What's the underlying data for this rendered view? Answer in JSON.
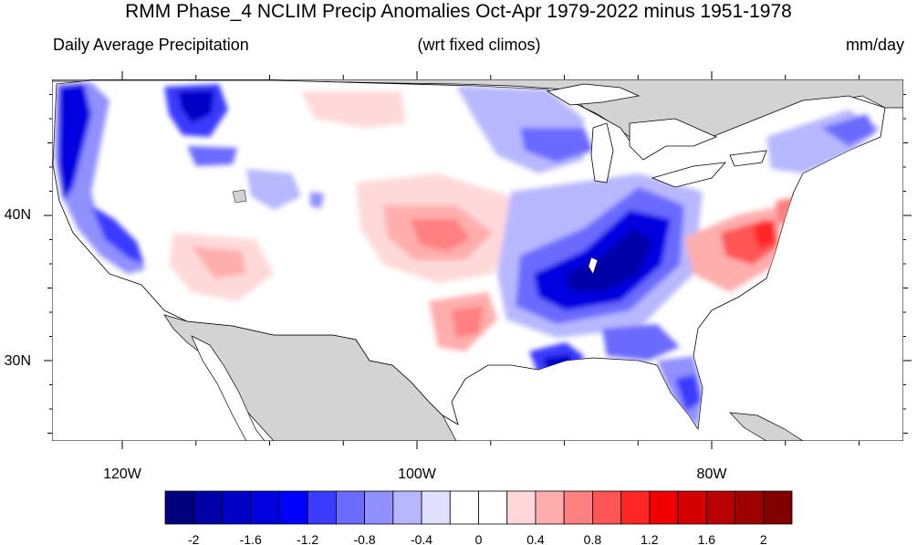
{
  "title": "RMM Phase_4 NCLIM Precip Anomalies Oct-Apr 1979-2022 minus 1951-1978",
  "subtitle_left": "Daily Average Precipitation",
  "subtitle_center": "(wrt fixed climos)",
  "subtitle_right": "mm/day",
  "map": {
    "lon_labels": [
      "120W",
      "100W",
      "80W"
    ],
    "lat_labels": [
      "40N",
      "30N"
    ],
    "land_fill": "#d3d3d3",
    "ocean_fill": "#ffffff"
  },
  "colorbar": {
    "colors": [
      "#00007f",
      "#0000a8",
      "#0000c6",
      "#0000e0",
      "#0000ff",
      "#3b3bff",
      "#6b6bff",
      "#9090ff",
      "#b7b7ff",
      "#e0e0ff",
      "#ffffff",
      "#ffffff",
      "#ffd9d9",
      "#ffadad",
      "#ff8080",
      "#ff5555",
      "#ff2626",
      "#f00000",
      "#d40000",
      "#b80000",
      "#9e0000",
      "#800000"
    ],
    "labels": [
      "-2",
      "-1.6",
      "-1.2",
      "-0.8",
      "-0.4",
      "0",
      "0.4",
      "0.8",
      "1.2",
      "1.6",
      "2"
    ]
  }
}
